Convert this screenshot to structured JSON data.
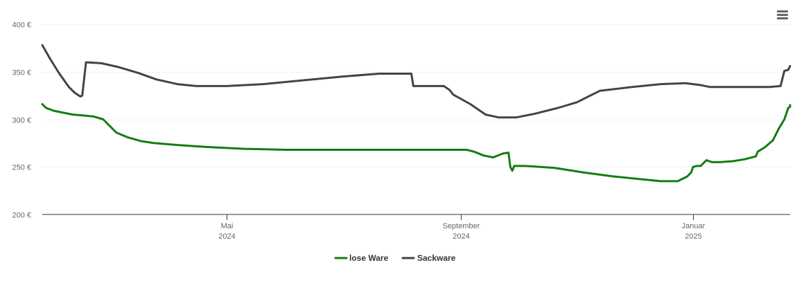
{
  "chart_data": {
    "type": "line",
    "title": "",
    "xlabel": "",
    "ylabel": "",
    "ylim": [
      200,
      400
    ],
    "y_ticks": [
      200,
      250,
      300,
      350,
      400
    ],
    "y_tick_labels": [
      "200 €",
      "250 €",
      "300 €",
      "350 €",
      "400 €"
    ],
    "xlim": [
      "2024-01-25",
      "2025-02-21"
    ],
    "x_ticks": [
      {
        "date": "2024-05-01",
        "month": "Mai",
        "year": "2024"
      },
      {
        "date": "2024-09-01",
        "month": "September",
        "year": "2024"
      },
      {
        "date": "2025-01-01",
        "month": "Januar",
        "year": "2025"
      }
    ],
    "grid": true,
    "legend_position": "bottom-center",
    "series": [
      {
        "name": "lose Ware",
        "color": "#137c13",
        "points": [
          [
            "2024-01-25",
            316
          ],
          [
            "2024-01-27",
            312
          ],
          [
            "2024-01-31",
            309
          ],
          [
            "2024-02-05",
            307
          ],
          [
            "2024-02-10",
            305
          ],
          [
            "2024-02-16",
            304
          ],
          [
            "2024-02-21",
            303
          ],
          [
            "2024-02-26",
            300
          ],
          [
            "2024-02-29",
            294
          ],
          [
            "2024-03-04",
            286
          ],
          [
            "2024-03-10",
            281
          ],
          [
            "2024-03-17",
            277
          ],
          [
            "2024-03-24",
            275
          ],
          [
            "2024-04-05",
            273
          ],
          [
            "2024-04-20",
            271
          ],
          [
            "2024-05-10",
            269
          ],
          [
            "2024-06-01",
            268
          ],
          [
            "2024-07-01",
            268
          ],
          [
            "2024-08-01",
            268
          ],
          [
            "2024-08-31",
            268
          ],
          [
            "2024-09-04",
            268
          ],
          [
            "2024-09-08",
            266
          ],
          [
            "2024-09-13",
            262
          ],
          [
            "2024-09-18",
            260
          ],
          [
            "2024-09-23",
            264
          ],
          [
            "2024-09-26",
            265
          ],
          [
            "2024-09-27",
            250
          ],
          [
            "2024-09-28",
            246
          ],
          [
            "2024-09-29",
            251
          ],
          [
            "2024-10-05",
            251
          ],
          [
            "2024-10-20",
            249
          ],
          [
            "2024-11-05",
            244
          ],
          [
            "2024-11-20",
            240
          ],
          [
            "2024-12-05",
            237
          ],
          [
            "2024-12-15",
            235
          ],
          [
            "2024-12-24",
            235
          ],
          [
            "2024-12-29",
            240
          ],
          [
            "2024-12-31",
            244
          ],
          [
            "2025-01-01",
            250
          ],
          [
            "2025-01-03",
            251
          ],
          [
            "2025-01-05",
            251
          ],
          [
            "2025-01-08",
            257
          ],
          [
            "2025-01-11",
            255
          ],
          [
            "2025-01-15",
            255
          ],
          [
            "2025-01-22",
            256
          ],
          [
            "2025-01-28",
            258
          ],
          [
            "2025-02-03",
            261
          ],
          [
            "2025-02-04",
            266
          ],
          [
            "2025-02-08",
            271
          ],
          [
            "2025-02-12",
            278
          ],
          [
            "2025-02-15",
            290
          ],
          [
            "2025-02-18",
            300
          ],
          [
            "2025-02-20",
            312
          ],
          [
            "2025-02-21",
            313
          ],
          [
            "2025-02-21",
            315
          ]
        ]
      },
      {
        "name": "Sackware",
        "color": "#434348",
        "points": [
          [
            "2024-01-25",
            378
          ],
          [
            "2024-01-29",
            364
          ],
          [
            "2024-02-03",
            348
          ],
          [
            "2024-02-08",
            334
          ],
          [
            "2024-02-11",
            328
          ],
          [
            "2024-02-14",
            324
          ],
          [
            "2024-02-15",
            325
          ],
          [
            "2024-02-17",
            360
          ],
          [
            "2024-02-25",
            359
          ],
          [
            "2024-03-05",
            355
          ],
          [
            "2024-03-15",
            349
          ],
          [
            "2024-03-25",
            342
          ],
          [
            "2024-04-05",
            337
          ],
          [
            "2024-04-15",
            335
          ],
          [
            "2024-05-01",
            335
          ],
          [
            "2024-05-20",
            337
          ],
          [
            "2024-06-10",
            341
          ],
          [
            "2024-07-01",
            345
          ],
          [
            "2024-07-20",
            348
          ],
          [
            "2024-08-06",
            348
          ],
          [
            "2024-08-07",
            335
          ],
          [
            "2024-08-23",
            335
          ],
          [
            "2024-08-26",
            331
          ],
          [
            "2024-08-28",
            326
          ],
          [
            "2024-09-06",
            316
          ],
          [
            "2024-09-14",
            305
          ],
          [
            "2024-09-21",
            302
          ],
          [
            "2024-09-30",
            302
          ],
          [
            "2024-10-10",
            306
          ],
          [
            "2024-10-22",
            312
          ],
          [
            "2024-11-01",
            318
          ],
          [
            "2024-11-08",
            325
          ],
          [
            "2024-11-13",
            330
          ],
          [
            "2024-11-30",
            334
          ],
          [
            "2024-12-15",
            337
          ],
          [
            "2024-12-28",
            338
          ],
          [
            "2025-01-05",
            336
          ],
          [
            "2025-01-10",
            334
          ],
          [
            "2025-01-20",
            334
          ],
          [
            "2025-02-01",
            334
          ],
          [
            "2025-02-10",
            334
          ],
          [
            "2025-02-16",
            335
          ],
          [
            "2025-02-18",
            351
          ],
          [
            "2025-02-20",
            352
          ],
          [
            "2025-02-21",
            356
          ]
        ]
      }
    ]
  },
  "toolbar": {
    "menu_icon": "hamburger-menu-icon"
  }
}
